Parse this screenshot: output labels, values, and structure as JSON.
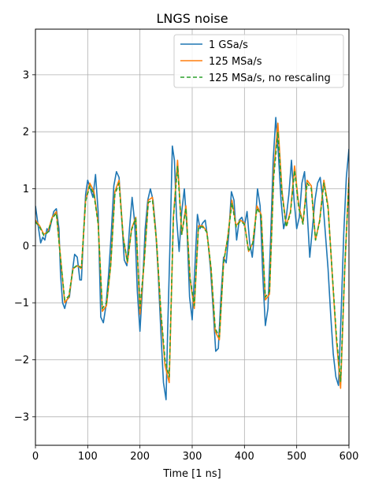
{
  "chart_data": {
    "type": "line",
    "title": "LNGS noise",
    "xlabel": "Time [1 ns]",
    "ylabel": "",
    "xlim": [
      0,
      600
    ],
    "ylim": [
      -3.5,
      3.8
    ],
    "x_ticks": [
      0,
      100,
      200,
      300,
      400,
      500,
      600
    ],
    "y_ticks": [
      -3,
      -2,
      -1,
      0,
      1,
      2,
      3
    ],
    "x_tick_labels": [
      "0",
      "100",
      "200",
      "300",
      "400",
      "500",
      "600"
    ],
    "y_tick_labels": [
      "−3",
      "−2",
      "−1",
      "0",
      "1",
      "2",
      "3"
    ],
    "grid": true,
    "legend_position": "upper-right",
    "series": [
      {
        "name": "1 GSa/s",
        "color": "#1f77b4",
        "style": "solid",
        "x": [
          0,
          6,
          10,
          14,
          18,
          22,
          26,
          30,
          35,
          40,
          45,
          48,
          52,
          56,
          60,
          65,
          70,
          75,
          80,
          85,
          88,
          92,
          96,
          100,
          105,
          110,
          115,
          120,
          125,
          130,
          135,
          140,
          145,
          150,
          155,
          160,
          165,
          170,
          175,
          180,
          185,
          190,
          195,
          200,
          205,
          210,
          215,
          220,
          225,
          230,
          235,
          240,
          245,
          250,
          253,
          258,
          262,
          266,
          270,
          275,
          280,
          285,
          290,
          295,
          300,
          305,
          310,
          315,
          320,
          325,
          330,
          335,
          340,
          345,
          350,
          355,
          360,
          365,
          370,
          375,
          380,
          385,
          390,
          395,
          400,
          405,
          410,
          415,
          420,
          425,
          430,
          435,
          440,
          445,
          450,
          455,
          460,
          465,
          470,
          475,
          480,
          485,
          490,
          495,
          500,
          505,
          510,
          515,
          520,
          525,
          530,
          535,
          540,
          545,
          550,
          555,
          560,
          565,
          570,
          575,
          580,
          585,
          590,
          595,
          600
        ],
        "y": [
          0.7,
          0.3,
          0.05,
          0.15,
          0.1,
          0.3,
          0.25,
          0.4,
          0.6,
          0.65,
          0.3,
          -0.5,
          -1.0,
          -1.1,
          -0.95,
          -0.9,
          -0.5,
          -0.15,
          -0.2,
          -0.6,
          -0.6,
          0.2,
          0.9,
          1.15,
          1.0,
          0.85,
          1.25,
          0.6,
          -1.25,
          -1.35,
          -1.05,
          -0.5,
          0.2,
          1.05,
          1.3,
          1.2,
          0.5,
          -0.25,
          -0.35,
          0.3,
          0.85,
          0.4,
          -0.8,
          -1.5,
          -0.7,
          0.3,
          0.8,
          1.0,
          0.8,
          0.3,
          -0.5,
          -1.5,
          -2.4,
          -2.7,
          -1.5,
          0.2,
          1.75,
          1.5,
          0.5,
          -0.1,
          0.6,
          1.0,
          0.3,
          -0.9,
          -1.3,
          -0.4,
          0.55,
          0.3,
          0.4,
          0.45,
          0.1,
          -0.4,
          -1.1,
          -1.85,
          -1.8,
          -0.9,
          -0.2,
          -0.3,
          0.2,
          0.95,
          0.8,
          0.1,
          0.45,
          0.5,
          0.35,
          0.6,
          0.05,
          -0.2,
          0.3,
          1.0,
          0.7,
          -0.5,
          -1.4,
          -1.1,
          0.1,
          1.5,
          2.25,
          1.6,
          0.8,
          0.3,
          0.5,
          0.9,
          1.5,
          0.8,
          0.3,
          0.5,
          1.1,
          1.3,
          0.6,
          -0.2,
          0.3,
          0.8,
          1.1,
          1.2,
          0.8,
          0.2,
          -0.4,
          -1.2,
          -1.9,
          -2.3,
          -2.45,
          -1.2,
          0.2,
          1.2,
          1.7
        ]
      },
      {
        "name": "125 MSa/s",
        "color": "#ff7f0e",
        "style": "solid",
        "x": [
          0,
          8,
          16,
          24,
          32,
          40,
          48,
          56,
          64,
          72,
          80,
          88,
          96,
          104,
          112,
          120,
          128,
          136,
          144,
          152,
          160,
          168,
          176,
          184,
          192,
          200,
          208,
          216,
          224,
          232,
          240,
          248,
          256,
          264,
          272,
          280,
          288,
          296,
          304,
          312,
          320,
          328,
          336,
          344,
          352,
          360,
          368,
          376,
          384,
          392,
          400,
          408,
          416,
          424,
          432,
          440,
          448,
          456,
          464,
          472,
          480,
          488,
          496,
          504,
          512,
          520,
          528,
          536,
          544,
          552,
          560,
          568,
          576,
          584,
          592,
          600
        ],
        "y": [
          0.45,
          0.35,
          0.2,
          0.25,
          0.5,
          0.6,
          -0.2,
          -1.0,
          -0.9,
          -0.4,
          -0.35,
          -0.4,
          0.8,
          1.1,
          0.95,
          0.4,
          -1.15,
          -1.05,
          -0.35,
          0.95,
          1.15,
          0.15,
          -0.3,
          0.3,
          0.5,
          -1.2,
          -0.3,
          0.8,
          0.85,
          0.05,
          -1.2,
          -2.1,
          -2.4,
          0.5,
          1.5,
          0.2,
          0.7,
          -0.6,
          -1.1,
          0.35,
          0.35,
          0.25,
          -0.4,
          -1.5,
          -1.65,
          -0.3,
          0.15,
          0.8,
          0.35,
          0.45,
          0.4,
          -0.1,
          0.05,
          0.7,
          0.55,
          -0.95,
          -0.85,
          1.3,
          2.15,
          0.95,
          0.35,
          0.6,
          1.4,
          0.7,
          0.4,
          1.15,
          1.05,
          0.1,
          0.45,
          1.15,
          0.7,
          -0.5,
          -1.65,
          -2.5,
          -0.4,
          1.2
        ]
      },
      {
        "name": "125 MSa/s, no rescaling",
        "color": "#2ca02c",
        "style": "dashed",
        "x": [
          0,
          8,
          16,
          24,
          32,
          40,
          48,
          56,
          64,
          72,
          80,
          88,
          96,
          104,
          112,
          120,
          128,
          136,
          144,
          152,
          160,
          168,
          176,
          184,
          192,
          200,
          208,
          216,
          224,
          232,
          240,
          248,
          256,
          264,
          272,
          280,
          288,
          296,
          304,
          312,
          320,
          328,
          336,
          344,
          352,
          360,
          368,
          376,
          384,
          392,
          400,
          408,
          416,
          424,
          432,
          440,
          448,
          456,
          464,
          472,
          480,
          488,
          496,
          504,
          512,
          520,
          528,
          536,
          544,
          552,
          560,
          568,
          576,
          584,
          592,
          600
        ],
        "y": [
          0.42,
          0.33,
          0.18,
          0.24,
          0.48,
          0.57,
          -0.22,
          -0.95,
          -0.88,
          -0.4,
          -0.34,
          -0.38,
          0.78,
          1.05,
          0.9,
          0.38,
          -1.1,
          -1.0,
          -0.34,
          0.9,
          1.1,
          0.14,
          -0.28,
          0.28,
          0.48,
          -1.1,
          -0.3,
          0.76,
          0.8,
          0.05,
          -1.15,
          -2.0,
          -2.3,
          0.48,
          1.4,
          0.2,
          0.66,
          -0.58,
          -1.05,
          0.33,
          0.33,
          0.24,
          -0.38,
          -1.45,
          -1.6,
          -0.3,
          0.14,
          0.75,
          0.33,
          0.43,
          0.38,
          -0.1,
          0.05,
          0.66,
          0.52,
          -0.9,
          -0.8,
          1.2,
          2.0,
          0.9,
          0.33,
          0.57,
          1.32,
          0.66,
          0.38,
          1.1,
          1.0,
          0.1,
          0.43,
          1.1,
          0.66,
          -0.48,
          -1.58,
          -2.38,
          -0.38,
          1.15
        ]
      }
    ]
  }
}
